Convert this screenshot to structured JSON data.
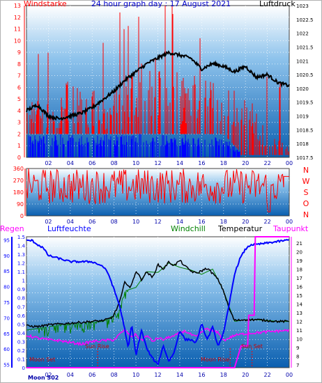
{
  "title": "24 hour graph day : 17 August 2021",
  "colors": {
    "wind": "#ff0000",
    "gust": "#0000ff",
    "pressure": "#000000",
    "direction": "#ff0000",
    "rain": "#ff00ff",
    "humidity": "#0000ff",
    "windchill": "#008000",
    "temperature": "#000000",
    "dewpoint": "#ff00ff",
    "axis_left": "#ff0000",
    "axis_blue": "#0000ff",
    "plot_top": "#f0f8ff",
    "plot_bottom": "#1060b0"
  },
  "chart_data": [
    {
      "type": "line",
      "left_label": "Windstarke",
      "right_label": "Luftdruck",
      "x_ticks": [
        "02",
        "04",
        "06",
        "08",
        "10",
        "12",
        "14",
        "16",
        "18",
        "20",
        "22",
        "00"
      ],
      "y_left_ticks": [
        "0",
        "1",
        "2",
        "3",
        "4",
        "5",
        "6",
        "7",
        "8",
        "9",
        "10",
        "11",
        "12",
        "13"
      ],
      "y_left_range": [
        0,
        13
      ],
      "y_right_ticks": [
        "1017.5",
        "1018",
        "1018.5",
        "1019",
        "1019.5",
        "1020",
        "1020.5",
        "1021",
        "1021.5",
        "1022",
        "1022.5",
        "1023"
      ],
      "y_right_range": [
        1017.5,
        1023
      ],
      "series": [
        {
          "key": "pressure",
          "x": [
            0,
            1,
            2,
            3,
            4,
            5,
            6,
            7,
            8,
            9,
            10,
            11,
            12,
            13,
            14,
            15,
            16,
            17,
            18,
            19,
            20,
            21,
            22,
            23,
            24
          ],
          "values": [
            1019.2,
            1019.4,
            1019.0,
            1018.9,
            1019.0,
            1019.1,
            1019.3,
            1019.6,
            1019.9,
            1020.3,
            1020.6,
            1020.9,
            1021.1,
            1021.3,
            1021.2,
            1021.1,
            1020.7,
            1020.9,
            1020.8,
            1020.6,
            1020.8,
            1020.4,
            1020.5,
            1020.2,
            1020.1
          ]
        },
        {
          "key": "wind_bars",
          "note": "",
          "x": [
            0,
            2,
            4,
            6,
            8,
            10,
            12,
            14,
            16,
            18,
            20,
            22,
            24
          ],
          "values": [
            5,
            5,
            7,
            6,
            6,
            8,
            9,
            8,
            7,
            6,
            6,
            2,
            1
          ]
        },
        {
          "key": "gust_bars",
          "x": [
            0,
            2,
            4,
            6,
            8,
            10,
            12,
            14,
            16,
            18,
            20,
            22,
            24
          ],
          "values": [
            2,
            2,
            2,
            2,
            2,
            2,
            2,
            2,
            2,
            2,
            0,
            0,
            0
          ]
        }
      ]
    },
    {
      "type": "line",
      "right_label_letters": [
        "N",
        "W",
        "S",
        "O",
        "N"
      ],
      "x_ticks": [
        "02",
        "04",
        "06",
        "08",
        "10",
        "12",
        "14",
        "16",
        "18",
        "20",
        "22",
        "00"
      ],
      "y_ticks": [
        "0",
        "90",
        "180",
        "270",
        "360"
      ],
      "y_range": [
        0,
        360
      ],
      "series": [
        {
          "key": "direction_mean",
          "x": [
            0,
            24
          ],
          "values": [
            220,
            220
          ]
        }
      ]
    },
    {
      "type": "line",
      "labels": {
        "rain": "Regen",
        "humidity": "Luftfeuchte",
        "windchill": "Windchill",
        "temperature": "Temperatur",
        "dewpoint": "Taupunkt"
      },
      "x_ticks": [
        "02",
        "04",
        "06",
        "08",
        "10",
        "12",
        "14",
        "16",
        "18",
        "20",
        "22",
        "00"
      ],
      "y_rain_ticks": [
        "0",
        "0.1",
        "0.2",
        "0.3",
        "0.4",
        "0.5",
        "0.6",
        "0.7",
        "0.8",
        "0.9",
        "1",
        "1.1",
        "1.2",
        "1.3",
        "1.4",
        "1.5"
      ],
      "y_rain_range": [
        0,
        1.5
      ],
      "y_humidity_ticks": [
        "55",
        "60",
        "65",
        "70",
        "75",
        "80",
        "85",
        "90",
        "95"
      ],
      "y_humidity_range": [
        54,
        96
      ],
      "y_temp_ticks": [
        "7",
        "8",
        "9",
        "10",
        "11",
        "12",
        "13",
        "14",
        "15",
        "16",
        "17",
        "18",
        "19",
        "20",
        "21"
      ],
      "y_temp_range": [
        6.7,
        21.7
      ],
      "annotations": {
        "moon_set": "Moon Set",
        "sun_rise": "Sun Rise",
        "moon_rise": "Moon Rise",
        "sun_set": "Sun Set",
        "bottom_left": "Moon S02"
      },
      "series": [
        {
          "key": "temperature",
          "x": [
            0,
            1,
            2,
            3,
            4,
            5,
            6,
            7,
            7.8,
            8.2,
            8.6,
            9,
            9.5,
            10,
            10.5,
            11,
            11.5,
            12,
            12.5,
            13,
            13.5,
            14,
            14.5,
            15,
            15.5,
            16,
            16.5,
            17,
            17.5,
            18,
            18.5,
            19,
            20,
            21,
            22,
            23,
            24
          ],
          "values": [
            11.5,
            11.4,
            11.6,
            11.7,
            11.8,
            11.9,
            12.0,
            12.1,
            12.4,
            13.3,
            14.6,
            16.6,
            15.8,
            17.8,
            16.8,
            17.7,
            17.0,
            18.5,
            18.0,
            18.8,
            18.4,
            19.0,
            18.3,
            17.8,
            17.5,
            17.8,
            18.1,
            17.5,
            16.8,
            15.5,
            13.5,
            12.1,
            12.2,
            12.2,
            12.1,
            12.0,
            12.0
          ]
        },
        {
          "key": "windchill",
          "x": [
            0,
            1,
            2,
            3,
            4,
            5,
            6,
            7,
            7.5,
            8,
            8.5,
            9,
            10,
            11,
            12,
            13,
            14,
            15,
            16,
            17,
            18,
            19,
            20,
            21,
            22,
            23,
            24
          ],
          "values": [
            11.0,
            11.2,
            11.4,
            11.6,
            11.8,
            11.8,
            11.9,
            12.0,
            12.3,
            12.8,
            13.5,
            15.5,
            15.9,
            17.7,
            17.6,
            18.7,
            18.2,
            17.9,
            17.4,
            18.0,
            15.5,
            12.0,
            12.2,
            12.2,
            12.1,
            12.0,
            12.0
          ]
        },
        {
          "key": "dewpoint",
          "x": [
            0,
            1,
            2,
            3,
            4,
            5,
            6,
            7,
            8,
            8.5,
            9,
            9.5,
            10,
            10.5,
            11,
            11.5,
            12,
            12.5,
            13,
            13.5,
            14,
            14.5,
            15,
            15.5,
            16,
            16.5,
            17,
            17.5,
            18,
            18.5,
            19,
            20,
            21,
            22,
            23,
            24
          ],
          "values": [
            10.4,
            10.1,
            9.9,
            9.8,
            9.6,
            9.4,
            9.7,
            9.8,
            9.9,
            10.5,
            11.1,
            10.2,
            10.5,
            9.8,
            10.4,
            9.7,
            10.1,
            9.9,
            10.2,
            10.3,
            10.7,
            10.9,
            10.5,
            10.2,
            10.8,
            11.2,
            10.9,
            10.7,
            9.8,
            10.1,
            10.4,
            10.6,
            10.7,
            10.8,
            10.9,
            11.0
          ]
        },
        {
          "key": "humidity",
          "x": [
            0,
            0.5,
            1,
            1.5,
            2,
            3,
            4,
            5,
            6,
            7,
            7.5,
            8,
            8.5,
            9,
            9.3,
            9.6,
            10,
            10.5,
            11,
            11.5,
            12,
            12.5,
            13,
            13.5,
            14,
            14.5,
            15,
            15.5,
            16,
            16.5,
            17,
            17.5,
            18,
            18.5,
            19,
            19.5,
            20,
            20.5,
            21,
            22,
            23,
            24
          ],
          "values": [
            94.8,
            94.8,
            93.5,
            92.5,
            90.0,
            89.0,
            88.0,
            88.0,
            88.0,
            86.5,
            84.0,
            79.0,
            74.0,
            66.0,
            60.0,
            68.0,
            58.0,
            66.0,
            60.0,
            57.0,
            55.0,
            61.0,
            56.0,
            59.0,
            66.0,
            63.0,
            63.0,
            62.0,
            68.0,
            63.0,
            67.0,
            61.0,
            65.0,
            74.0,
            84.0,
            89.0,
            92.0,
            93.5,
            93.5,
            94.0,
            94.5,
            95.0
          ]
        },
        {
          "key": "rain",
          "x": [
            0,
            19,
            19.6,
            20.2,
            20.3,
            20.8,
            20.9,
            24
          ],
          "values": [
            0,
            0,
            0.25,
            0.25,
            0.6,
            0.6,
            1.5,
            1.5
          ]
        }
      ]
    }
  ]
}
